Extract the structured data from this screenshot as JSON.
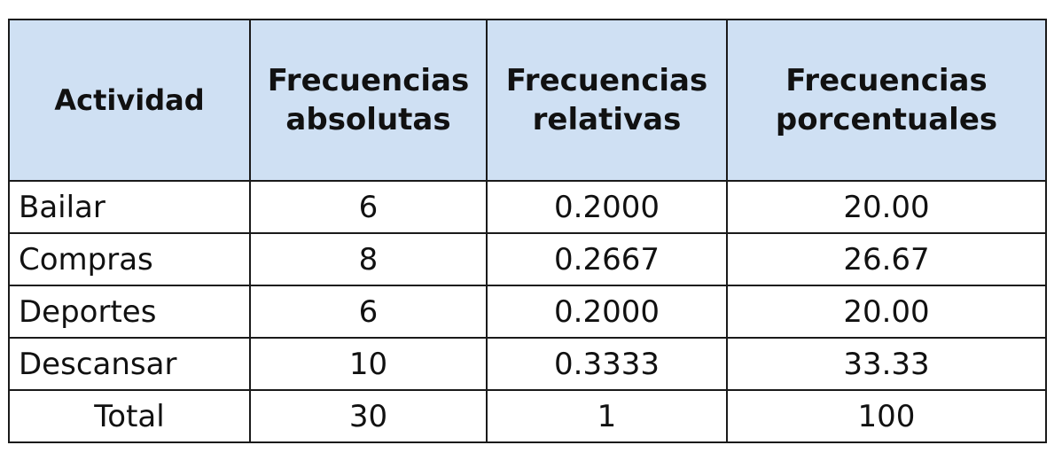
{
  "table": {
    "headers": [
      {
        "lines": [
          "Actividad"
        ]
      },
      {
        "lines": [
          "Frecuencias",
          "absolutas"
        ]
      },
      {
        "lines": [
          "Frecuencias",
          "relativas"
        ]
      },
      {
        "lines": [
          "Frecuencias",
          "porcentuales"
        ]
      }
    ],
    "rows": [
      {
        "actividad": "Bailar",
        "absolutas": "6",
        "relativas": "0.2000",
        "porcentuales": "20.00"
      },
      {
        "actividad": "Compras",
        "absolutas": "8",
        "relativas": "0.2667",
        "porcentuales": "26.67"
      },
      {
        "actividad": "Deportes",
        "absolutas": "6",
        "relativas": "0.2000",
        "porcentuales": "20.00"
      },
      {
        "actividad": "Descansar",
        "absolutas": "10",
        "relativas": "0.3333",
        "porcentuales": "33.33"
      }
    ],
    "total": {
      "label": "Total",
      "absolutas": "30",
      "relativas": "1",
      "porcentuales": "100"
    }
  },
  "colors": {
    "header_background": "#cfe0f3",
    "border": "#1a1a1a"
  }
}
